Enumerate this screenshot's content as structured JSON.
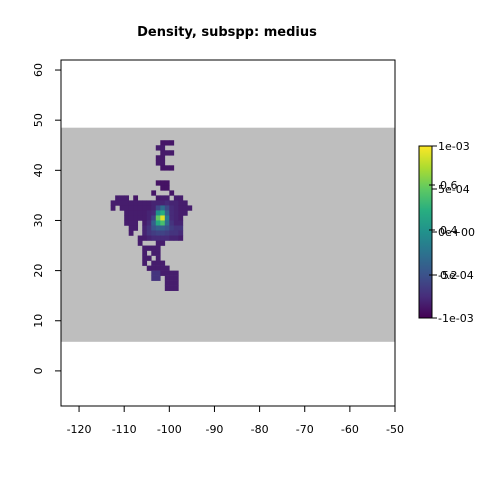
{
  "chart_data": {
    "type": "heatmap",
    "title": "Density, subspp: medius",
    "xlabel": "",
    "ylabel": "",
    "xlim": [
      -124,
      -50
    ],
    "ylim": [
      -7,
      62
    ],
    "x_ticks": [
      -120,
      -110,
      -100,
      -90,
      -80,
      -70,
      -60,
      -50
    ],
    "y_ticks": [
      0,
      10,
      20,
      30,
      40,
      50,
      60
    ],
    "x_tick_labels": [
      "-120",
      "-110",
      "-100",
      "-90",
      "-80",
      "-70",
      "-60",
      "-50"
    ],
    "y_tick_labels": [
      "0",
      "10",
      "20",
      "30",
      "40",
      "50",
      "60"
    ],
    "background_band": {
      "y_range": [
        5.8,
        48.5
      ],
      "color": "#bebebe"
    },
    "grid": false,
    "colormap": "viridis",
    "cell_size_deg": 1,
    "legend": {
      "placement": "right",
      "tick_labels": [
        "1e-03",
        "5e-04",
        "0e+00",
        "-5e-04",
        "-1e-03"
      ],
      "overlay_labels": [
        "0.6",
        "0.4",
        "0.2"
      ]
    },
    "cells": [
      [
        -102,
        45,
        0.06
      ],
      [
        -101,
        45,
        0.06
      ],
      [
        -100,
        45,
        0.06
      ],
      [
        -103,
        44,
        0.08
      ],
      [
        -102,
        44,
        0.08
      ],
      [
        -102,
        43,
        0.07
      ],
      [
        -101,
        43,
        0.07
      ],
      [
        -100,
        43,
        0.07
      ],
      [
        -103,
        42,
        0.07
      ],
      [
        -102,
        42,
        0.07
      ],
      [
        -103,
        41,
        0.07
      ],
      [
        -102,
        41,
        0.07
      ],
      [
        -102,
        40,
        0.06
      ],
      [
        -101,
        40,
        0.06
      ],
      [
        -100,
        40,
        0.06
      ],
      [
        -103,
        37,
        0.05
      ],
      [
        -102,
        37,
        0.05
      ],
      [
        -101,
        37,
        0.05
      ],
      [
        -102,
        36,
        0.05
      ],
      [
        -101,
        36,
        0.05
      ],
      [
        -104,
        35,
        0.06
      ],
      [
        -100,
        35,
        0.06
      ],
      [
        -112,
        34,
        0.08
      ],
      [
        -111,
        34,
        0.08
      ],
      [
        -110,
        34,
        0.08
      ],
      [
        -108,
        34,
        0.06
      ],
      [
        -103,
        34,
        0.07
      ],
      [
        -102,
        34,
        0.08
      ],
      [
        -101,
        34,
        0.08
      ],
      [
        -99,
        34,
        0.08
      ],
      [
        -98,
        34,
        0.08
      ],
      [
        -113,
        33,
        0.08
      ],
      [
        -112,
        33,
        0.08
      ],
      [
        -111,
        33,
        0.08
      ],
      [
        -110,
        33,
        0.08
      ],
      [
        -109,
        33,
        0.08
      ],
      [
        -108,
        33,
        0.08
      ],
      [
        -107,
        33,
        0.08
      ],
      [
        -106,
        33,
        0.08
      ],
      [
        -105,
        33,
        0.08
      ],
      [
        -104,
        33,
        0.1
      ],
      [
        -103,
        33,
        0.1
      ],
      [
        -102,
        33,
        0.1
      ],
      [
        -101,
        33,
        0.12
      ],
      [
        -100,
        33,
        0.1
      ],
      [
        -99,
        33,
        0.1
      ],
      [
        -98,
        33,
        0.08
      ],
      [
        -97,
        33,
        0.08
      ],
      [
        -113,
        32,
        0.08
      ],
      [
        -111,
        32,
        0.08
      ],
      [
        -110,
        32,
        0.08
      ],
      [
        -109,
        32,
        0.08
      ],
      [
        -108,
        32,
        0.08
      ],
      [
        -107,
        32,
        0.08
      ],
      [
        -106,
        32,
        0.08
      ],
      [
        -105,
        32,
        0.08
      ],
      [
        -104,
        32,
        0.1
      ],
      [
        -103,
        32,
        0.22
      ],
      [
        -102,
        32,
        0.35
      ],
      [
        -101,
        32,
        0.22
      ],
      [
        -100,
        32,
        0.12
      ],
      [
        -99,
        32,
        0.1
      ],
      [
        -98,
        32,
        0.08
      ],
      [
        -97,
        32,
        0.08
      ],
      [
        -96,
        32,
        0.08
      ],
      [
        -110,
        31,
        0.08
      ],
      [
        -109,
        31,
        0.08
      ],
      [
        -108,
        31,
        0.08
      ],
      [
        -107,
        31,
        0.08
      ],
      [
        -106,
        31,
        0.08
      ],
      [
        -105,
        31,
        0.1
      ],
      [
        -104,
        31,
        0.12
      ],
      [
        -103,
        31,
        0.5
      ],
      [
        -102,
        31,
        0.62
      ],
      [
        -101,
        31,
        0.3
      ],
      [
        -100,
        31,
        0.12
      ],
      [
        -99,
        31,
        0.1
      ],
      [
        -98,
        31,
        0.08
      ],
      [
        -97,
        31,
        0.08
      ],
      [
        -110,
        30,
        0.08
      ],
      [
        -109,
        30,
        0.08
      ],
      [
        -108,
        30,
        0.08
      ],
      [
        -107,
        30,
        0.08
      ],
      [
        -106,
        30,
        0.08
      ],
      [
        -105,
        30,
        0.1
      ],
      [
        -104,
        30,
        0.2
      ],
      [
        -103,
        30,
        0.75
      ],
      [
        -102,
        30,
        0.95
      ],
      [
        -101,
        30,
        0.4
      ],
      [
        -100,
        30,
        0.12
      ],
      [
        -99,
        30,
        0.1
      ],
      [
        -98,
        30,
        0.08
      ],
      [
        -110,
        29,
        0.08
      ],
      [
        -109,
        29,
        0.08
      ],
      [
        -108,
        29,
        0.08
      ],
      [
        -106,
        29,
        0.08
      ],
      [
        -105,
        29,
        0.12
      ],
      [
        -104,
        29,
        0.3
      ],
      [
        -103,
        29,
        0.6
      ],
      [
        -102,
        29,
        0.7
      ],
      [
        -101,
        29,
        0.35
      ],
      [
        -100,
        29,
        0.15
      ],
      [
        -99,
        29,
        0.1
      ],
      [
        -98,
        29,
        0.1
      ],
      [
        -109,
        28,
        0.08
      ],
      [
        -108,
        28,
        0.08
      ],
      [
        -106,
        28,
        0.1
      ],
      [
        -105,
        28,
        0.15
      ],
      [
        -104,
        28,
        0.25
      ],
      [
        -103,
        28,
        0.3
      ],
      [
        -102,
        28,
        0.3
      ],
      [
        -101,
        28,
        0.25
      ],
      [
        -100,
        28,
        0.18
      ],
      [
        -99,
        28,
        0.15
      ],
      [
        -98,
        28,
        0.15
      ],
      [
        -109,
        27,
        0.08
      ],
      [
        -106,
        27,
        0.1
      ],
      [
        -105,
        27,
        0.15
      ],
      [
        -104,
        27,
        0.18
      ],
      [
        -103,
        27,
        0.2
      ],
      [
        -102,
        27,
        0.2
      ],
      [
        -101,
        27,
        0.18
      ],
      [
        -100,
        27,
        0.15
      ],
      [
        -99,
        27,
        0.15
      ],
      [
        -98,
        27,
        0.12
      ],
      [
        -107,
        26,
        0.08
      ],
      [
        -106,
        26,
        0.08
      ],
      [
        -105,
        26,
        0.1
      ],
      [
        -104,
        26,
        0.12
      ],
      [
        -103,
        26,
        0.12
      ],
      [
        -102,
        26,
        0.12
      ],
      [
        -101,
        26,
        0.12
      ],
      [
        -100,
        26,
        0.1
      ],
      [
        -99,
        26,
        0.1
      ],
      [
        -98,
        26,
        0.08
      ],
      [
        -107,
        25,
        0.08
      ],
      [
        -103,
        25,
        0.08
      ],
      [
        -102,
        25,
        0.08
      ],
      [
        -106,
        24,
        0.08
      ],
      [
        -105,
        24,
        0.08
      ],
      [
        -104,
        24,
        0.08
      ],
      [
        -103,
        24,
        0.08
      ],
      [
        -106,
        23,
        0.08
      ],
      [
        -104,
        23,
        0.08
      ],
      [
        -103,
        23,
        0.08
      ],
      [
        -106,
        22,
        0.08
      ],
      [
        -105,
        22,
        0.08
      ],
      [
        -103,
        22,
        0.08
      ],
      [
        -106,
        21,
        0.08
      ],
      [
        -104,
        21,
        0.08
      ],
      [
        -103,
        21,
        0.08
      ],
      [
        -102,
        21,
        0.08
      ],
      [
        -105,
        20,
        0.08
      ],
      [
        -104,
        20,
        0.08
      ],
      [
        -103,
        20,
        0.08
      ],
      [
        -102,
        20,
        0.08
      ],
      [
        -101,
        20,
        0.08
      ],
      [
        -104,
        19,
        0.15
      ],
      [
        -103,
        19,
        0.15
      ],
      [
        -102,
        19,
        0.08
      ],
      [
        -101,
        19,
        0.08
      ],
      [
        -100,
        19,
        0.08
      ],
      [
        -99,
        19,
        0.08
      ],
      [
        -104,
        18,
        0.15
      ],
      [
        -103,
        18,
        0.15
      ],
      [
        -101,
        18,
        0.08
      ],
      [
        -100,
        18,
        0.08
      ],
      [
        -99,
        18,
        0.08
      ],
      [
        -101,
        17,
        0.08
      ],
      [
        -100,
        17,
        0.08
      ],
      [
        -99,
        17,
        0.08
      ],
      [
        -101,
        16,
        0.08
      ],
      [
        -100,
        16,
        0.08
      ],
      [
        -99,
        16,
        0.08
      ]
    ]
  }
}
